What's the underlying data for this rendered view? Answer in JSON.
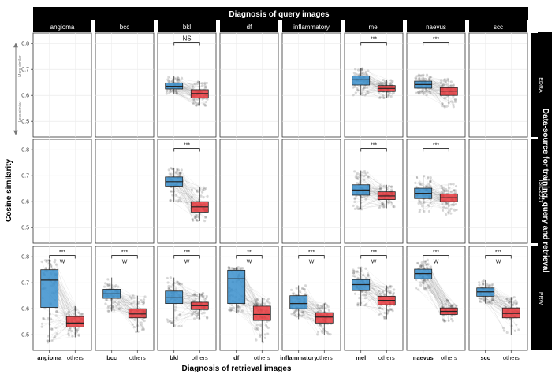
{
  "chart_data": {
    "type": "box",
    "title": "Diagnosis of query images",
    "xlabel": "Diagnosis of retrieval images",
    "ylabel": "Cosine similarity",
    "strip_label": "Data-source for training, query and retrieval",
    "columns": [
      "angioma",
      "bcc",
      "bkl",
      "df",
      "inflammatory",
      "mel",
      "naevus",
      "scc"
    ],
    "rows": [
      "EDRA",
      "ISIC2017",
      "PRW"
    ],
    "x_tick_labels": {
      "angioma": [
        "angioma",
        "others"
      ],
      "bcc": [
        "bcc",
        "others"
      ],
      "bkl": [
        "bkl",
        "others"
      ],
      "df": [
        "df",
        "others"
      ],
      "inflammatory": [
        "inflammatory",
        "others"
      ],
      "mel": [
        "mel",
        "others"
      ],
      "naevus": [
        "naevus",
        "others"
      ],
      "scc": [
        "scc",
        "others"
      ]
    },
    "y_ticks": [
      0.5,
      0.6,
      0.7,
      0.8
    ],
    "y_tick_labels": [
      "0.5",
      "0.6",
      "0.7",
      "0.8"
    ],
    "ylim": [
      0.44,
      0.84
    ],
    "arrow_labels": {
      "up": "More similar",
      "down": "Less similar"
    },
    "series_colors": {
      "same": "#3a8fcd",
      "others": "#e8393e"
    },
    "panels": [
      {
        "row": "EDRA",
        "col": "bkl",
        "sig": "NS",
        "test": "",
        "same": {
          "q1": 0.625,
          "median": 0.635,
          "q3": 0.648,
          "lo": 0.605,
          "hi": 0.675
        },
        "others": {
          "q1": 0.59,
          "median": 0.607,
          "q3": 0.622,
          "lo": 0.56,
          "hi": 0.655
        }
      },
      {
        "row": "EDRA",
        "col": "mel",
        "sig": "***",
        "test": "",
        "same": {
          "q1": 0.64,
          "median": 0.66,
          "q3": 0.675,
          "lo": 0.6,
          "hi": 0.705
        },
        "others": {
          "q1": 0.615,
          "median": 0.627,
          "q3": 0.638,
          "lo": 0.59,
          "hi": 0.66
        }
      },
      {
        "row": "EDRA",
        "col": "naevus",
        "sig": "***",
        "test": "",
        "same": {
          "q1": 0.628,
          "median": 0.642,
          "q3": 0.655,
          "lo": 0.6,
          "hi": 0.68
        },
        "others": {
          "q1": 0.6,
          "median": 0.617,
          "q3": 0.63,
          "lo": 0.555,
          "hi": 0.665
        }
      },
      {
        "row": "ISIC2017",
        "col": "bkl",
        "sig": "***",
        "test": "",
        "same": {
          "q1": 0.66,
          "median": 0.677,
          "q3": 0.695,
          "lo": 0.6,
          "hi": 0.73
        },
        "others": {
          "q1": 0.56,
          "median": 0.58,
          "q3": 0.6,
          "lo": 0.525,
          "hi": 0.655
        }
      },
      {
        "row": "ISIC2017",
        "col": "mel",
        "sig": "***",
        "test": "",
        "same": {
          "q1": 0.625,
          "median": 0.645,
          "q3": 0.665,
          "lo": 0.57,
          "hi": 0.72
        },
        "others": {
          "q1": 0.608,
          "median": 0.622,
          "q3": 0.638,
          "lo": 0.575,
          "hi": 0.665
        }
      },
      {
        "row": "ISIC2017",
        "col": "naevus",
        "sig": "***",
        "test": "",
        "same": {
          "q1": 0.612,
          "median": 0.632,
          "q3": 0.652,
          "lo": 0.56,
          "hi": 0.7
        },
        "others": {
          "q1": 0.6,
          "median": 0.615,
          "q3": 0.63,
          "lo": 0.55,
          "hi": 0.67
        }
      },
      {
        "row": "PRW",
        "col": "angioma",
        "sig": "***",
        "test": "W",
        "same": {
          "q1": 0.605,
          "median": 0.71,
          "q3": 0.75,
          "lo": 0.47,
          "hi": 0.79
        },
        "others": {
          "q1": 0.53,
          "median": 0.545,
          "q3": 0.57,
          "lo": 0.49,
          "hi": 0.61
        }
      },
      {
        "row": "PRW",
        "col": "bcc",
        "sig": "***",
        "test": "W",
        "same": {
          "q1": 0.64,
          "median": 0.657,
          "q3": 0.675,
          "lo": 0.59,
          "hi": 0.72
        },
        "others": {
          "q1": 0.565,
          "median": 0.58,
          "q3": 0.6,
          "lo": 0.51,
          "hi": 0.65
        }
      },
      {
        "row": "PRW",
        "col": "bkl",
        "sig": "***",
        "test": "W",
        "same": {
          "q1": 0.62,
          "median": 0.642,
          "q3": 0.668,
          "lo": 0.53,
          "hi": 0.72
        },
        "others": {
          "q1": 0.597,
          "median": 0.612,
          "q3": 0.625,
          "lo": 0.56,
          "hi": 0.66
        }
      },
      {
        "row": "PRW",
        "col": "df",
        "sig": "**",
        "test": "W",
        "same": {
          "q1": 0.62,
          "median": 0.715,
          "q3": 0.748,
          "lo": 0.585,
          "hi": 0.76
        },
        "others": {
          "q1": 0.555,
          "median": 0.578,
          "q3": 0.61,
          "lo": 0.47,
          "hi": 0.64
        }
      },
      {
        "row": "PRW",
        "col": "inflammatory",
        "sig": "***",
        "test": "W",
        "same": {
          "q1": 0.6,
          "median": 0.62,
          "q3": 0.65,
          "lo": 0.56,
          "hi": 0.69
        },
        "others": {
          "q1": 0.545,
          "median": 0.568,
          "q3": 0.585,
          "lo": 0.5,
          "hi": 0.62
        }
      },
      {
        "row": "PRW",
        "col": "mel",
        "sig": "***",
        "test": "W",
        "same": {
          "q1": 0.67,
          "median": 0.693,
          "q3": 0.712,
          "lo": 0.61,
          "hi": 0.76
        },
        "others": {
          "q1": 0.615,
          "median": 0.632,
          "q3": 0.648,
          "lo": 0.56,
          "hi": 0.69
        }
      },
      {
        "row": "PRW",
        "col": "naevus",
        "sig": "***",
        "test": "W",
        "same": {
          "q1": 0.715,
          "median": 0.735,
          "q3": 0.752,
          "lo": 0.67,
          "hi": 0.79
        },
        "others": {
          "q1": 0.578,
          "median": 0.59,
          "q3": 0.603,
          "lo": 0.55,
          "hi": 0.635
        }
      },
      {
        "row": "PRW",
        "col": "scc",
        "sig": "***",
        "test": "W",
        "same": {
          "q1": 0.648,
          "median": 0.665,
          "q3": 0.68,
          "lo": 0.62,
          "hi": 0.71
        },
        "others": {
          "q1": 0.565,
          "median": 0.582,
          "q3": 0.603,
          "lo": 0.5,
          "hi": 0.645
        }
      }
    ]
  }
}
